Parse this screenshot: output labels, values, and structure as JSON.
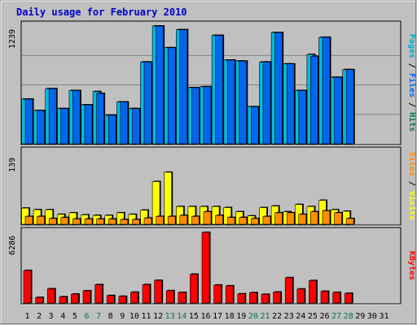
{
  "colors": {
    "background": "#c0c0c0",
    "plot_background": "#c0c0c0",
    "grid": "#808080",
    "title": "#0000cc",
    "hits": "#00bbdd",
    "files": "#0066ee",
    "pages": "#00aacc",
    "visits": "#ffff00",
    "sites": "#ff8c00",
    "kbytes": "#ff0000",
    "weekday_label": "#000000",
    "weekend_label": "#007755"
  },
  "chart_data": {
    "type": "bar",
    "title": "Daily usage for February 2010",
    "categories": [
      "1",
      "2",
      "3",
      "4",
      "5",
      "6",
      "7",
      "8",
      "9",
      "10",
      "11",
      "12",
      "13",
      "14",
      "15",
      "16",
      "17",
      "18",
      "19",
      "20",
      "21",
      "22",
      "23",
      "24",
      "25",
      "26",
      "27",
      "28",
      "29",
      "30",
      "31"
    ],
    "weekend_days": [
      "6",
      "7",
      "13",
      "14",
      "20",
      "21",
      "27",
      "28"
    ],
    "panels": [
      {
        "name": "hits-files-pages",
        "ylabel_max": "1239",
        "ylim": [
          0,
          1239
        ],
        "legend": [
          {
            "label": "Pages",
            "color": "#00aacc"
          },
          {
            "label": "Files",
            "color": "#0066ee"
          },
          {
            "label": "Hits",
            "color": "#007755"
          }
        ],
        "legend_sep": " / ",
        "series": [
          {
            "name": "Hits",
            "values": [
              470,
              350,
              580,
              370,
              560,
              410,
              550,
              300,
              440,
              370,
              860,
              1239,
              1010,
              1200,
              590,
              600,
              1140,
              880,
              870,
              390,
              860,
              1170,
              840,
              560,
              940,
              1120,
              700,
              780,
              0,
              0,
              0
            ]
          },
          {
            "name": "Files",
            "values": [
              470,
              350,
              580,
              370,
              560,
              410,
              530,
              300,
              440,
              370,
              860,
              1239,
              1010,
              1200,
              590,
              600,
              1140,
              880,
              870,
              390,
              860,
              1170,
              840,
              560,
              920,
              1120,
              700,
              780,
              0,
              0,
              0
            ]
          }
        ]
      },
      {
        "name": "visits-sites",
        "ylabel_max": "139",
        "ylim": [
          0,
          139
        ],
        "legend": [
          {
            "label": "Sites",
            "color": "#ff8c00"
          },
          {
            "label": "Visits",
            "color": "#ffff00"
          }
        ],
        "legend_sep": " / ",
        "series": [
          {
            "name": "Visits",
            "values": [
              31,
              28,
              28,
              19,
              22,
              18,
              17,
              17,
              22,
              19,
              27,
              82,
              100,
              34,
              34,
              34,
              34,
              32,
              24,
              16,
              32,
              35,
              24,
              38,
              34,
              46,
              28,
              25,
              0,
              0,
              0
            ]
          },
          {
            "name": "Sites",
            "values": [
              15,
              15,
              11,
              13,
              10,
              10,
              10,
              10,
              9,
              9,
              12,
              15,
              15,
              17,
              15,
              24,
              17,
              13,
              13,
              11,
              15,
              22,
              22,
              19,
              24,
              26,
              22,
              11,
              0,
              0,
              0
            ]
          }
        ]
      },
      {
        "name": "kbytes",
        "ylabel_max": "6286",
        "ylim": [
          0,
          6286
        ],
        "legend": [
          {
            "label": "KBytes",
            "color": "#ff0000"
          }
        ],
        "legend_sep": "",
        "series": [
          {
            "name": "KBytes",
            "values": [
              2900,
              500,
              1270,
              560,
              800,
              1090,
              1640,
              670,
              600,
              960,
              1640,
              2020,
              1100,
              950,
              2570,
              6286,
              1600,
              1530,
              820,
              930,
              780,
              980,
              2260,
              1250,
              2000,
              1050,
              950,
              870,
              0,
              0,
              0
            ]
          }
        ]
      }
    ]
  }
}
